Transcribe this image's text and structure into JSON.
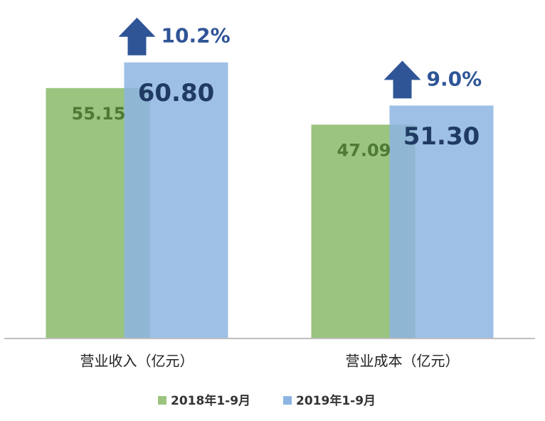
{
  "chart_data": {
    "type": "bar",
    "categories": [
      "营业收入（亿元）",
      "营业成本（亿元）"
    ],
    "series": [
      {
        "name": "2018年1-9月",
        "color": "#9bc47f",
        "label_color": "#4e7a35",
        "values": [
          55.15,
          47.09
        ]
      },
      {
        "name": "2019年1-9月",
        "color": "#8db4e2",
        "label_color": "#1f3a63",
        "values": [
          60.8,
          51.3
        ],
        "value_labels": [
          "60.80",
          "51.30"
        ]
      }
    ],
    "annotations": [
      "10.2%",
      "9.0%"
    ],
    "annotation_color": "#2f5597",
    "ylim": [
      0,
      70
    ],
    "legend": "bottom"
  }
}
